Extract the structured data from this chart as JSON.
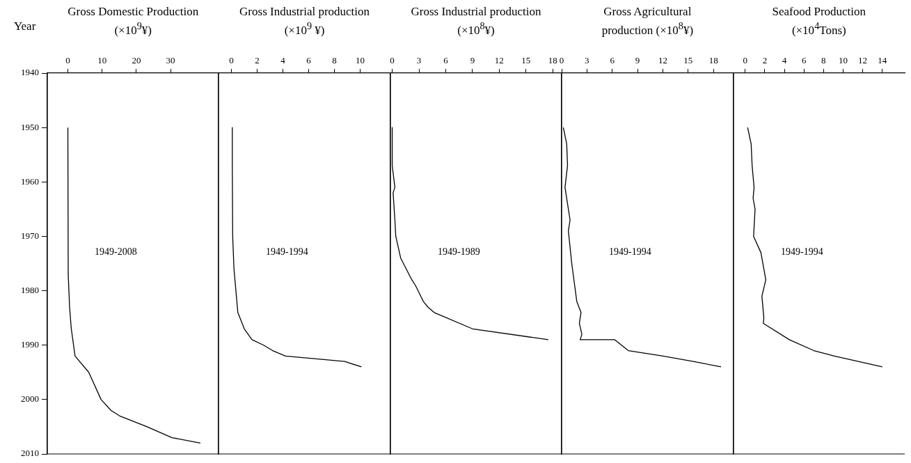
{
  "chart_data": [
    {
      "type": "line",
      "title": "Gross Domestic Production (×10$^{9}$¥)",
      "ylabel": "Year",
      "annotations": [
        "1949-2008"
      ],
      "xlim": [
        -6,
        44
      ],
      "xticks": [
        0,
        10,
        20,
        30
      ],
      "ylim": [
        2010,
        1940
      ],
      "yticks": [
        1940,
        1950,
        1960,
        1970,
        1980,
        1990,
        2000,
        2010
      ],
      "series": [
        {
          "color": "#000000",
          "x": [
            0,
            0.1,
            0.5,
            1.0,
            2.1,
            6.1,
            9.7,
            12.6,
            15.1,
            23.1,
            30.4,
            38.7
          ],
          "values": [
            1950,
            1977,
            1983,
            1987,
            1992,
            1995,
            2000,
            2002,
            2003,
            2005,
            2007,
            2008
          ]
        }
      ]
    },
    {
      "type": "line",
      "title": "Gross Industrial production (×10$^{9}$ ¥)",
      "annotations": [
        "1949-1994"
      ],
      "xlim": [
        -1,
        12.3
      ],
      "xticks": [
        0,
        2,
        4,
        6,
        8,
        10
      ],
      "ylim": [
        2010,
        1940
      ],
      "yticks": [
        1940,
        1950,
        1960,
        1970,
        1980,
        1990,
        2000,
        2010
      ],
      "tick_labels": "x",
      "series": [
        {
          "color": "#000000",
          "x": [
            0.07,
            0.07,
            0.1,
            0.2,
            0.5,
            1.0,
            1.6,
            2.5,
            3.2,
            4.2,
            8.8,
            10.1
          ],
          "values": [
            1950,
            1957,
            1970,
            1976,
            1984,
            1987,
            1989,
            1990,
            1991,
            1992,
            1993,
            1994
          ]
        }
      ]
    },
    {
      "type": "line",
      "title": "Gross Industrial production (×10$^{8}$¥)",
      "annotations": [
        "1949-1989"
      ],
      "xlim": [
        -0.2,
        19
      ],
      "xticks": [
        0,
        3,
        6,
        9,
        12,
        15,
        18
      ],
      "ylim": [
        2010,
        1940
      ],
      "yticks": [
        1940,
        1950,
        1960,
        1970,
        1980,
        1990,
        2000,
        2010
      ],
      "tick_labels": "x",
      "series": [
        {
          "color": "#000000",
          "x": [
            0,
            0,
            0.3,
            0.1,
            0.3,
            0.4,
            0.95,
            2.2,
            2.6,
            3.5,
            4.0,
            4.7,
            9.0,
            17.5
          ],
          "values": [
            1950,
            1957,
            1961,
            1962,
            1967,
            1970,
            1974,
            1978,
            1979,
            1982,
            1983,
            1984,
            1987,
            1989
          ]
        }
      ]
    },
    {
      "type": "line",
      "title": "Gross Agricultural production (×10$^{8}$¥)",
      "annotations": [
        "1949-1994"
      ],
      "xlim": [
        0,
        20.3
      ],
      "xticks": [
        0,
        3,
        6,
        9,
        12,
        15,
        18
      ],
      "ylim": [
        2010,
        1940
      ],
      "yticks": [
        1940,
        1950,
        1960,
        1970,
        1980,
        1990,
        2000,
        2010
      ],
      "tick_labels": "x",
      "series": [
        {
          "color": "#000000",
          "x": [
            0.2,
            0.6,
            0.7,
            0.4,
            1.0,
            0.8,
            1.2,
            1.8,
            2.3,
            2.1,
            2.4,
            2.2,
            6.3,
            7.9,
            12.0,
            15.6,
            18.9
          ],
          "values": [
            1950,
            1953,
            1957,
            1961,
            1967,
            1969,
            1975,
            1982,
            1984,
            1986,
            1988,
            1989,
            1989,
            1991,
            1992,
            1993,
            1994
          ]
        }
      ]
    },
    {
      "type": "line",
      "title": "Seafood Production (×10$^{4}$Tons)",
      "annotations": [
        "1949-1994"
      ],
      "xlim": [
        -1.2,
        16.3
      ],
      "xticks": [
        0,
        2,
        4,
        6,
        8,
        10,
        12,
        14
      ],
      "ylim": [
        2010,
        1940
      ],
      "yticks": [
        1940,
        1950,
        1960,
        1970,
        1980,
        1990,
        2000,
        2010
      ],
      "tick_labels": "x",
      "series": [
        {
          "color": "#000000",
          "x": [
            0.24,
            0.6,
            0.7,
            0.9,
            0.8,
            1.0,
            0.85,
            1.6,
            2.1,
            1.7,
            1.9,
            1.85,
            4.5,
            7.0,
            9.1,
            14.0
          ],
          "values": [
            1950,
            1953,
            1957,
            1961,
            1963,
            1965,
            1970,
            1973,
            1978,
            1981,
            1985,
            1986,
            1989,
            1991,
            1992,
            1994
          ]
        }
      ]
    }
  ]
}
